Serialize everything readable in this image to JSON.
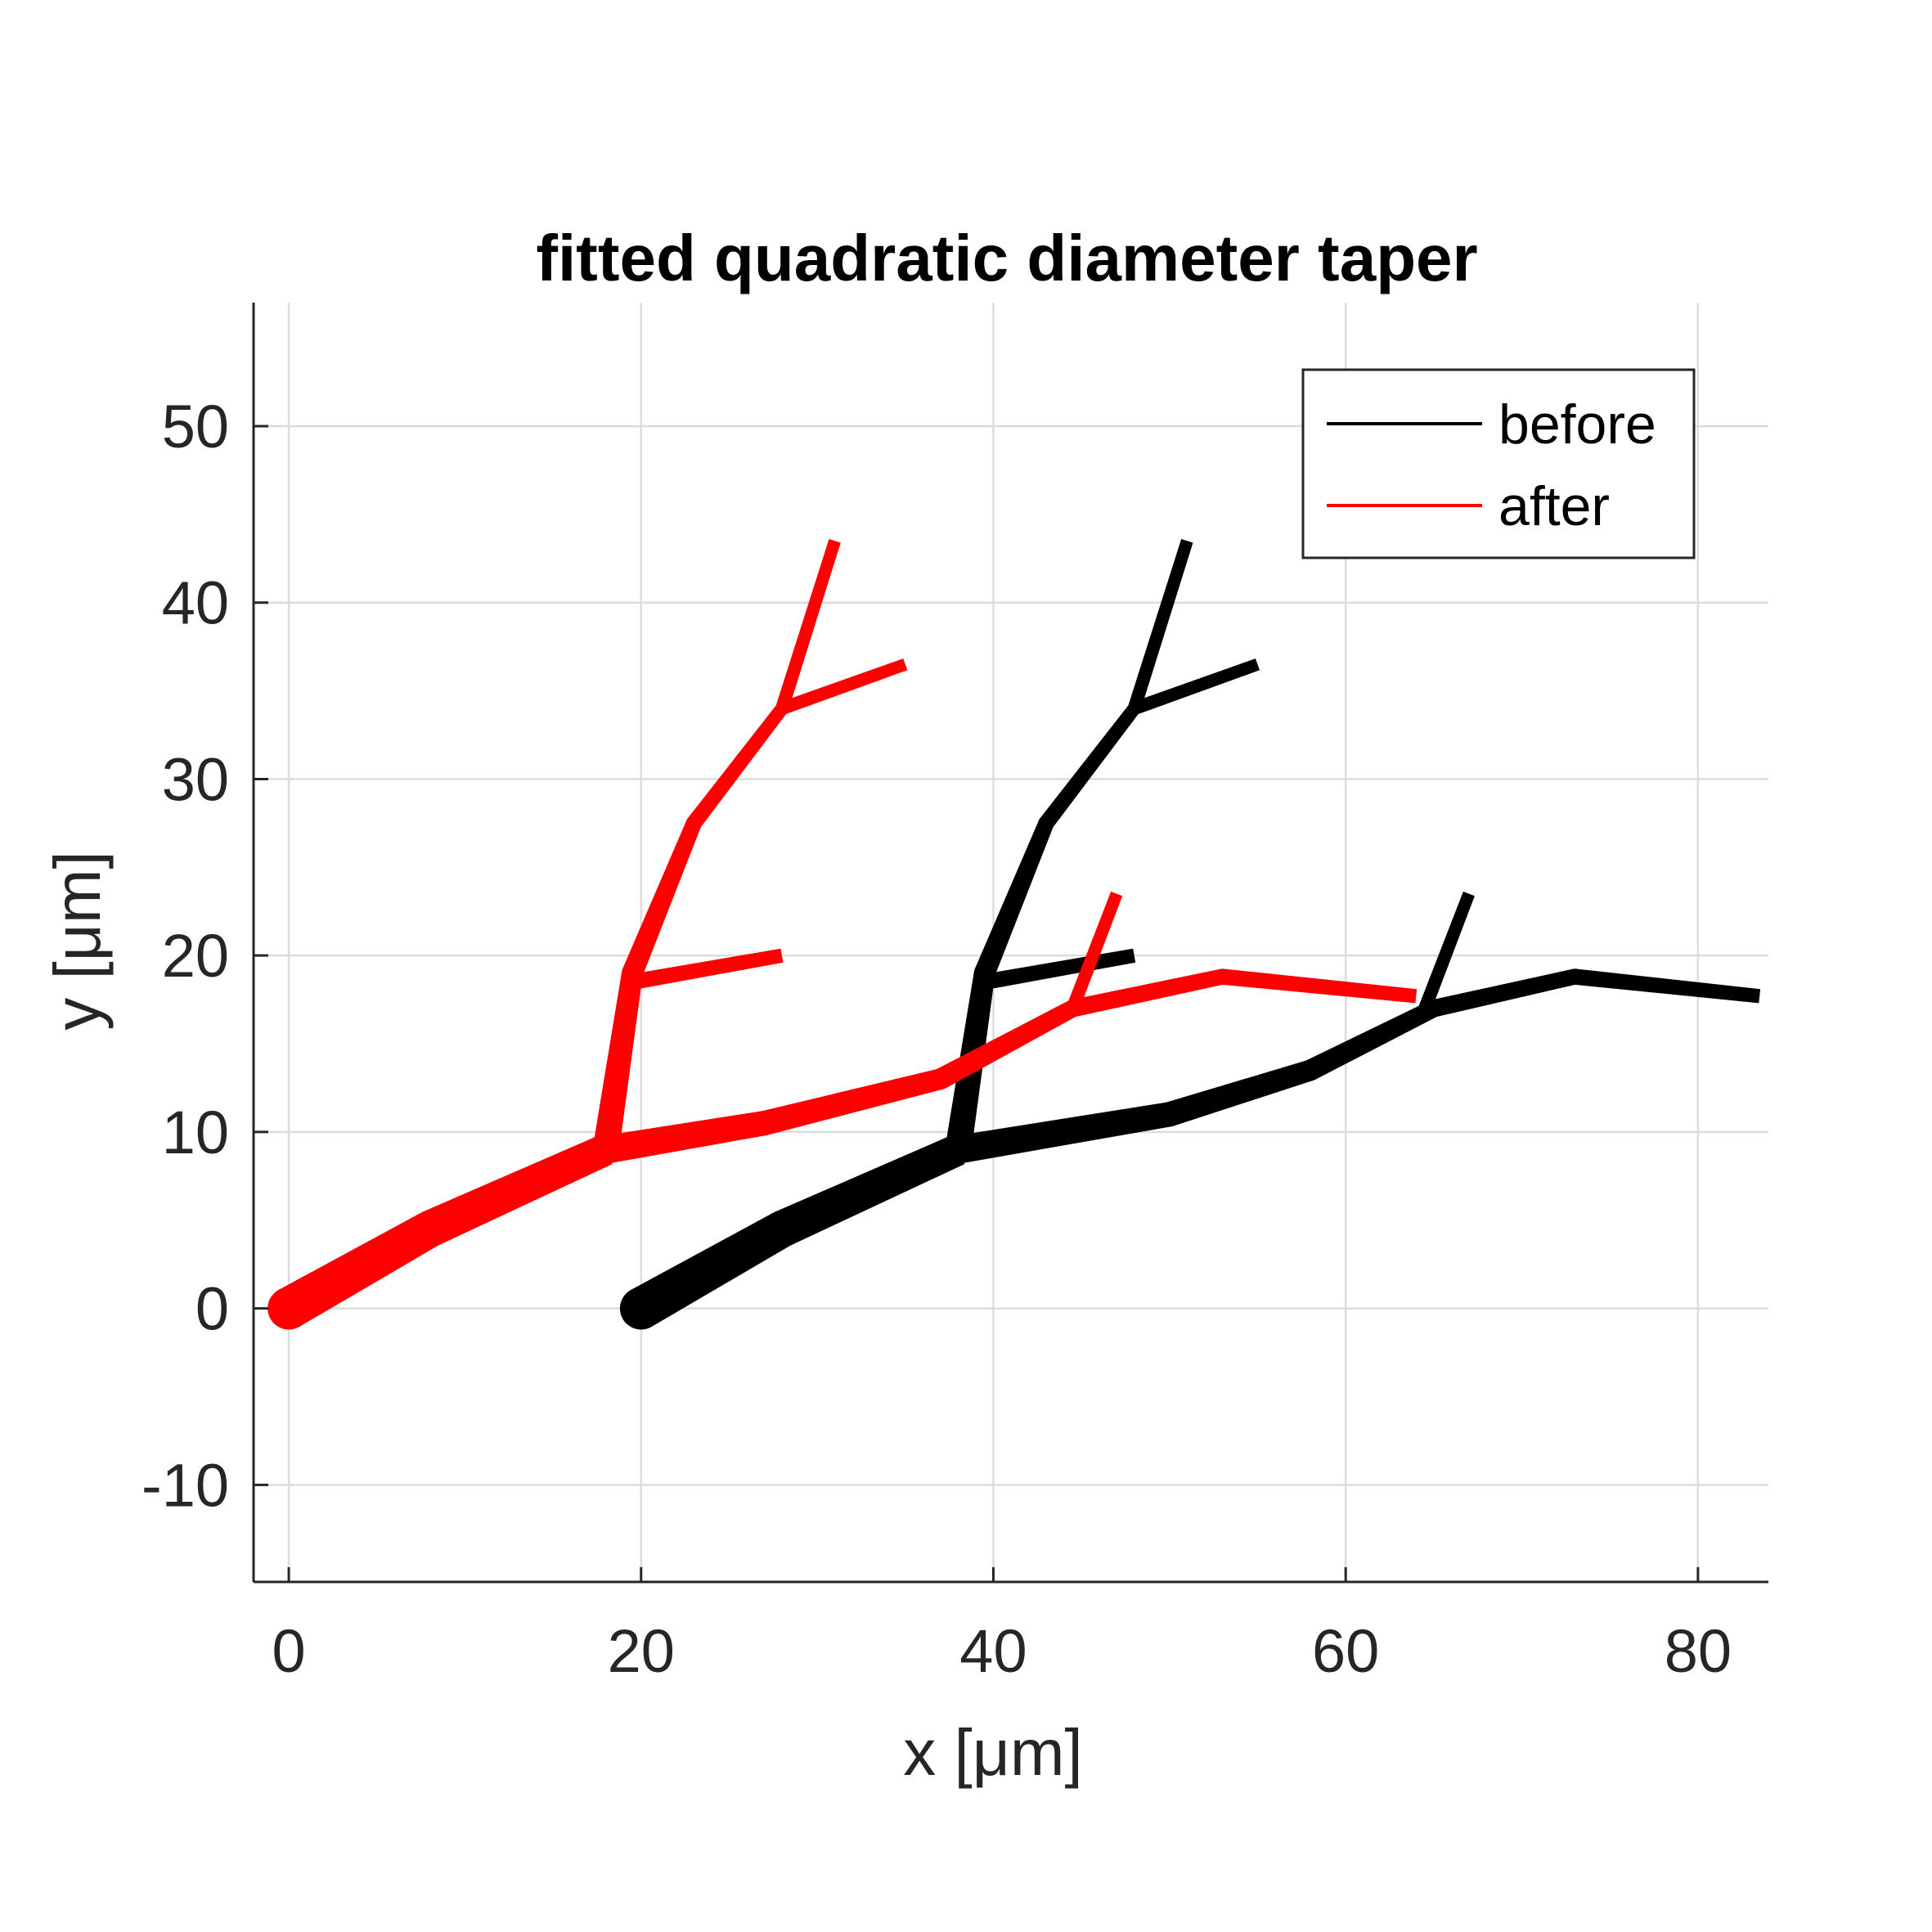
{
  "chart_data": {
    "type": "line",
    "title": "fitted quadratic diameter taper",
    "xlabel": "x [μm]",
    "ylabel": "y [μm]",
    "xlim": [
      -2,
      84
    ],
    "ylim": [
      -15.5,
      57
    ],
    "xticks": [
      0,
      20,
      40,
      60,
      80
    ],
    "yticks": [
      -10,
      0,
      10,
      20,
      30,
      40,
      50
    ],
    "xtick_labels": [
      "0",
      "20",
      "40",
      "60",
      "80"
    ],
    "ytick_labels": [
      "-10",
      "0",
      "10",
      "20",
      "30",
      "40",
      "50"
    ],
    "grid": true,
    "legend_position": "top-right",
    "series": [
      {
        "name": "before",
        "color": "#000000",
        "branches": [
          {
            "points": [
              [
                20,
                0
              ],
              [
                28,
                4.5
              ],
              [
                38,
                9
              ]
            ],
            "widths": [
              2.4,
              2.1,
              1.8
            ]
          },
          {
            "points": [
              [
                38,
                9
              ],
              [
                50,
                11
              ],
              [
                58,
                13.5
              ],
              [
                65,
                17
              ],
              [
                73,
                18.8
              ],
              [
                83.5,
                17.7
              ]
            ],
            "widths": [
              1.6,
              1.4,
              1.2,
              1.0,
              0.9,
              0.8
            ]
          },
          {
            "points": [
              [
                38,
                9
              ],
              [
                39.5,
                19
              ],
              [
                43,
                27.5
              ],
              [
                48,
                34
              ],
              [
                51,
                43.5
              ]
            ],
            "widths": [
              1.5,
              1.2,
              0.9,
              0.75,
              0.7
            ]
          },
          {
            "points": [
              [
                39.5,
                18.5
              ],
              [
                48,
                20
              ]
            ],
            "widths": [
              0.9,
              0.8
            ]
          },
          {
            "points": [
              [
                48,
                34
              ],
              [
                55,
                36.5
              ]
            ],
            "widths": [
              0.75,
              0.7
            ]
          },
          {
            "points": [
              [
                64.5,
                17
              ],
              [
                67,
                23.5
              ]
            ],
            "widths": [
              0.75,
              0.7
            ]
          }
        ]
      },
      {
        "name": "after",
        "color": "#ff0000",
        "branches": [
          {
            "points": [
              [
                0,
                0
              ],
              [
                8,
                4.5
              ],
              [
                18,
                9
              ]
            ],
            "widths": [
              2.4,
              2.1,
              1.8
            ]
          },
          {
            "points": [
              [
                18,
                9
              ],
              [
                27,
                10.5
              ],
              [
                37,
                13
              ],
              [
                44.5,
                17
              ],
              [
                53,
                18.8
              ],
              [
                64,
                17.7
              ]
            ],
            "widths": [
              1.6,
              1.4,
              1.2,
              1.0,
              0.9,
              0.8
            ]
          },
          {
            "points": [
              [
                18,
                9
              ],
              [
                19.5,
                19
              ],
              [
                23,
                27.5
              ],
              [
                28,
                34
              ],
              [
                31,
                43.5
              ]
            ],
            "widths": [
              1.5,
              1.2,
              0.9,
              0.75,
              0.7
            ]
          },
          {
            "points": [
              [
                19.5,
                18.5
              ],
              [
                28,
                20
              ]
            ],
            "widths": [
              0.9,
              0.8
            ]
          },
          {
            "points": [
              [
                28,
                34
              ],
              [
                35,
                36.5
              ]
            ],
            "widths": [
              0.75,
              0.7
            ]
          },
          {
            "points": [
              [
                44.5,
                17
              ],
              [
                47,
                23.5
              ]
            ],
            "widths": [
              0.75,
              0.7
            ]
          }
        ]
      }
    ]
  }
}
